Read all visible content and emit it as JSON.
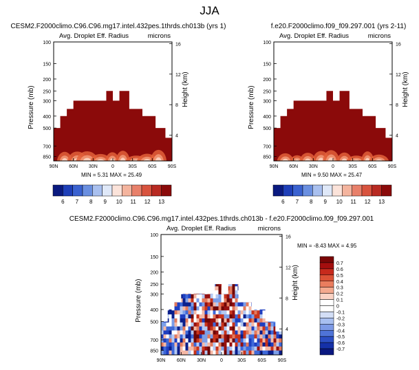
{
  "page": {
    "title": "JJA"
  },
  "colors": {
    "fill_dark_red": "#8b0a0a",
    "diff_blue": "#1a3aa8",
    "diff_red": "#b01414"
  },
  "chart_data": [
    {
      "type": "heatmap",
      "title": "CESM2.F2000climo.C96.C96.mg17.intel.432pes.1thrds.ch013b (yrs 1)",
      "subtitle": "Avg. Droplet Eff. Radius",
      "units": "microns",
      "ylabel": "Pressure (mb)",
      "ylabel_right": "Height (km)",
      "x_ticks": [
        "90N",
        "60N",
        "30N",
        "0",
        "30S",
        "60S",
        "90S"
      ],
      "y_ticks": [
        100,
        150,
        200,
        250,
        300,
        400,
        500,
        700,
        850
      ],
      "y_right_ticks": [
        16,
        12,
        8,
        4
      ],
      "ylim": [
        100,
        925
      ],
      "y_scale": "log",
      "stats": "MIN =  5.31  MAX = 25.49",
      "colorbar_labels": [
        "6",
        "7",
        "8",
        "9",
        "10",
        "11",
        "12",
        "13"
      ],
      "grid": false,
      "legend_position": "bottom"
    },
    {
      "type": "heatmap",
      "title": "f.e20.F2000climo.f09_f09.297.001 (yrs 2-11)",
      "subtitle": "Avg. Droplet Eff. Radius",
      "units": "microns",
      "ylabel": "Pressure (mb)",
      "ylabel_right": "Height (km)",
      "x_ticks": [
        "90N",
        "60N",
        "30N",
        "0",
        "30S",
        "60S",
        "90S"
      ],
      "y_ticks": [
        100,
        150,
        200,
        250,
        300,
        400,
        500,
        700,
        850
      ],
      "y_right_ticks": [
        16,
        12,
        8,
        4
      ],
      "ylim": [
        100,
        925
      ],
      "y_scale": "log",
      "stats": "MIN =  9.50  MAX = 25.47",
      "colorbar_labels": [
        "6",
        "7",
        "8",
        "9",
        "10",
        "11",
        "12",
        "13"
      ],
      "grid": false,
      "legend_position": "bottom"
    },
    {
      "type": "heatmap",
      "title": "CESM2.F2000climo.C96.C96.mg17.intel.432pes.1thrds.ch013b - f.e20.F2000climo.f09_f09.297.001",
      "subtitle": "Avg. Droplet Eff. Radius",
      "units": "microns",
      "ylabel": "Pressure (mb)",
      "ylabel_right": "Height (km)",
      "x_ticks": [
        "90N",
        "60N",
        "30N",
        "0",
        "30S",
        "60S",
        "90S"
      ],
      "y_ticks": [
        100,
        150,
        200,
        250,
        300,
        400,
        500,
        700,
        850
      ],
      "y_right_ticks": [
        16,
        12,
        8,
        4
      ],
      "ylim": [
        100,
        925
      ],
      "y_scale": "log",
      "stats": "MIN = -8.43  MAX =   4.95",
      "colorbar_labels": [
        "0.7",
        "0.6",
        "0.5",
        "0.4",
        "0.3",
        "0.2",
        "0.1",
        "0",
        "-0.1",
        "-0.2",
        "-0.3",
        "-0.4",
        "-0.5",
        "-0.6",
        "-0.7"
      ],
      "grid": false,
      "legend_position": "right"
    }
  ]
}
